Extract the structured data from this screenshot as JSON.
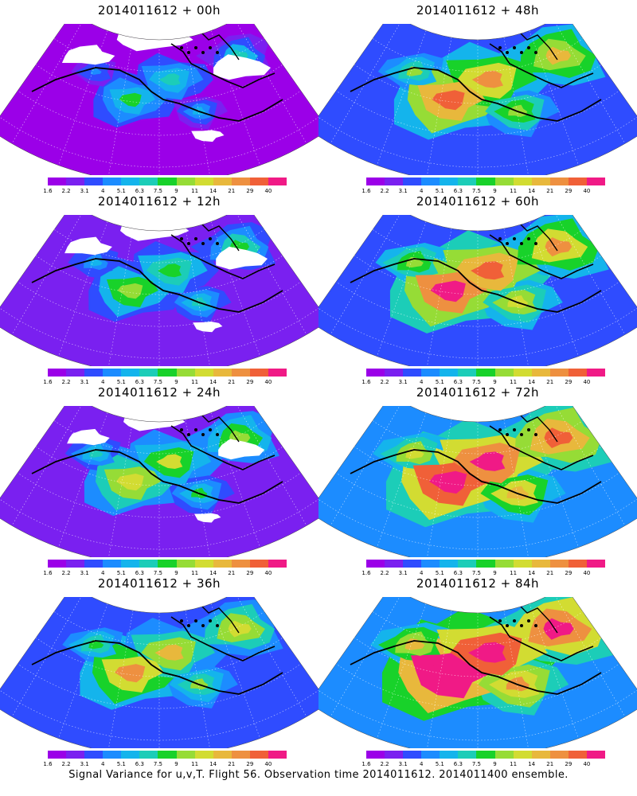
{
  "panels": [
    {
      "title": "2014011612 + 00h",
      "intensity": 0.1
    },
    {
      "title": "2014011612 + 48h",
      "intensity": 0.55
    },
    {
      "title": "2014011612 + 12h",
      "intensity": 0.22
    },
    {
      "title": "2014011612 + 60h",
      "intensity": 0.65
    },
    {
      "title": "2014011612 + 24h",
      "intensity": 0.33
    },
    {
      "title": "2014011612 + 72h",
      "intensity": 0.75
    },
    {
      "title": "2014011612 + 36h",
      "intensity": 0.44
    },
    {
      "title": "2014011612 + 84h",
      "intensity": 0.85
    }
  ],
  "colorbar": {
    "labels": [
      "1.6",
      "2.2",
      "3.1",
      "4",
      "5.1",
      "6.3",
      "7.5",
      "9",
      "11",
      "14",
      "21",
      "29",
      "40"
    ],
    "colors": [
      "#9b00e8",
      "#7a20f0",
      "#2f4cff",
      "#1c8cff",
      "#14b4ec",
      "#1ccdb8",
      "#18d22a",
      "#96dc36",
      "#d2dc32",
      "#e8b83c",
      "#ee9040",
      "#f06038",
      "#f01a86"
    ]
  },
  "caption": "Signal Variance for u,v,T. Flight 56. Observation time 2014011612. 2014011400 ensemble."
}
